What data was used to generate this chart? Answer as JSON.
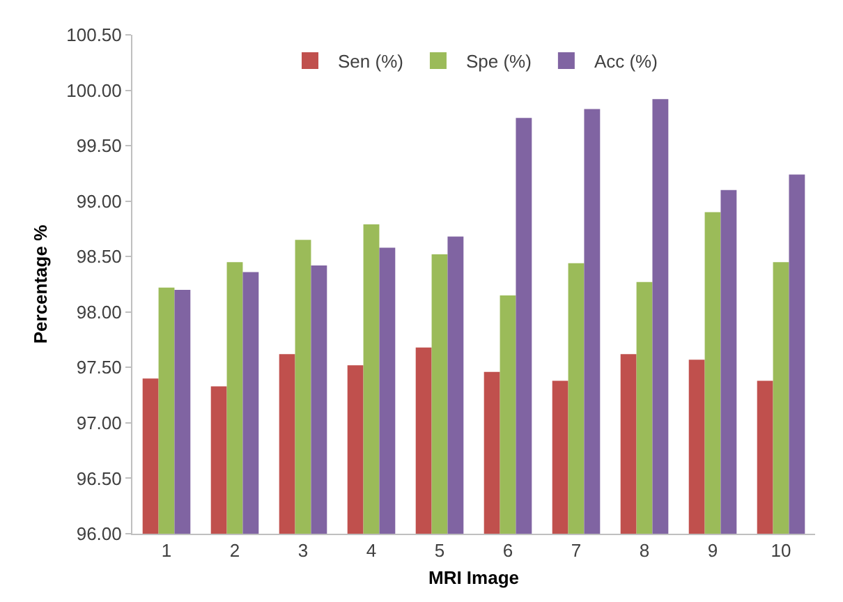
{
  "chart_data": {
    "type": "bar",
    "xlabel": "MRI Image",
    "ylabel": "Percentage %",
    "categories": [
      "1",
      "2",
      "3",
      "4",
      "5",
      "6",
      "7",
      "8",
      "9",
      "10"
    ],
    "series": [
      {
        "name": "Sen (%)",
        "color": "#c0504d",
        "values": [
          97.4,
          97.33,
          97.62,
          97.52,
          97.68,
          97.46,
          97.38,
          97.62,
          97.57,
          97.38
        ]
      },
      {
        "name": "Spe (%)",
        "color": "#9bbb59",
        "values": [
          98.22,
          98.45,
          98.65,
          98.79,
          98.52,
          98.15,
          98.44,
          98.27,
          98.9,
          98.45
        ]
      },
      {
        "name": "Acc (%)",
        "color": "#8064a2",
        "values": [
          98.2,
          98.36,
          98.42,
          98.58,
          98.68,
          99.75,
          99.83,
          99.92,
          99.1,
          99.24
        ]
      }
    ],
    "ylim": [
      96,
      100.5
    ],
    "yticks": [
      {
        "value": 96,
        "label": "96.00"
      },
      {
        "value": 96.5,
        "label": "96.50"
      },
      {
        "value": 97,
        "label": "97.00"
      },
      {
        "value": 97.5,
        "label": "97.50"
      },
      {
        "value": 98,
        "label": "98.00"
      },
      {
        "value": 98.5,
        "label": "98.50"
      },
      {
        "value": 99,
        "label": "99.00"
      },
      {
        "value": 99.5,
        "label": "99.50"
      },
      {
        "value": 100,
        "label": "100.00"
      },
      {
        "value": 100.5,
        "label": "100.50"
      }
    ],
    "legend": "top"
  }
}
